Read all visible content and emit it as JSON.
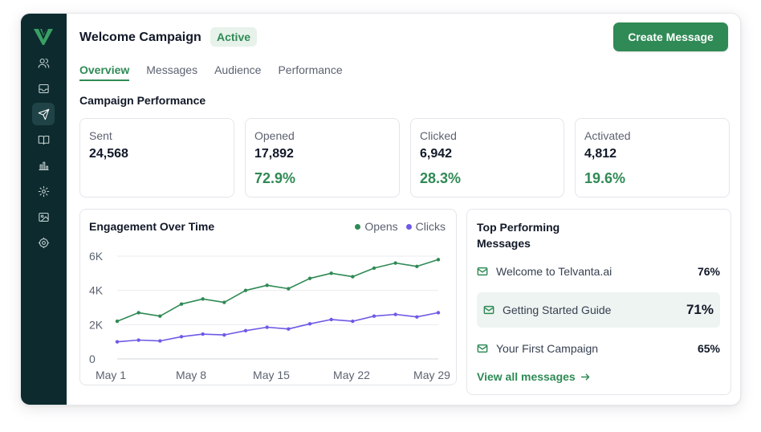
{
  "header": {
    "title": "Welcome Campaign",
    "status": "Active",
    "create_label": "Create Message"
  },
  "tabs": [
    {
      "label": "Overview",
      "active": true
    },
    {
      "label": "Messages",
      "active": false
    },
    {
      "label": "Audience",
      "active": false
    },
    {
      "label": "Performance",
      "active": false
    }
  ],
  "sidebar": {
    "icons": [
      "users-icon",
      "inbox-icon",
      "send-icon",
      "book-icon",
      "bar-chart-icon",
      "settings-cog-icon",
      "image-icon",
      "gear-icon"
    ],
    "active_index": 2
  },
  "performance": {
    "title": "Campaign Performance",
    "stats": [
      {
        "label": "Sent",
        "value": "24,568",
        "pct": ""
      },
      {
        "label": "Opened",
        "value": "17,892",
        "pct": "72.9%"
      },
      {
        "label": "Clicked",
        "value": "6,942",
        "pct": "28.3%"
      },
      {
        "label": "Activated",
        "value": "4,812",
        "pct": "19.6%"
      }
    ]
  },
  "chart_data": {
    "type": "line",
    "title": "Engagement Over Time",
    "x_ticks": [
      "May 1",
      "May 8",
      "May 15",
      "May 22",
      "May 29"
    ],
    "y_ticks": [
      "0",
      "2K",
      "4K",
      "6K"
    ],
    "ylim": [
      0,
      6000
    ],
    "grid": true,
    "legend_position": "top-right",
    "x": [
      "May 1",
      "May 3",
      "May 5",
      "May 7",
      "May 9",
      "May 11",
      "May 13",
      "May 15",
      "May 17",
      "May 19",
      "May 21",
      "May 23",
      "May 25",
      "May 27",
      "May 29",
      "May 31"
    ],
    "series": [
      {
        "name": "Opens",
        "color": "#2f8a55",
        "values": [
          2200,
          2700,
          2500,
          3200,
          3500,
          3300,
          4000,
          4300,
          4100,
          4700,
          5000,
          4800,
          5300,
          5600,
          5400,
          5800
        ]
      },
      {
        "name": "Clicks",
        "color": "#6d5ae6",
        "values": [
          1000,
          1100,
          1050,
          1300,
          1450,
          1400,
          1650,
          1850,
          1750,
          2050,
          2300,
          2200,
          2500,
          2600,
          2450,
          2700
        ]
      }
    ]
  },
  "top_messages": {
    "title": "Top Performing Messages",
    "items": [
      {
        "name": "Welcome to Telvanta.ai",
        "pct": "76%"
      },
      {
        "name": "Getting Started Guide",
        "pct": "71%"
      },
      {
        "name": "Your First Campaign",
        "pct": "65%"
      }
    ],
    "highlight_index": 1,
    "view_all": "View all messages"
  },
  "colors": {
    "accent": "#2f8a55",
    "sidebar": "#0d2b2e",
    "clicks": "#6d5ae6"
  }
}
